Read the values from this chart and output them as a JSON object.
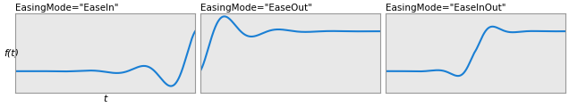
{
  "titles": [
    "EasingMode=\"EaseIn\"",
    "EasingMode=\"EaseOut\"",
    "EasingMode=\"EaseInOut\""
  ],
  "xlabel": "t",
  "ylabel": "f(t)",
  "bg_color": "#e8e8e8",
  "line_color": "#1a7fd4",
  "line_width": 1.5,
  "title_fontsize": 7.5,
  "axis_label_fontsize": 8,
  "n_points": 1000,
  "amplitude": 1.0,
  "period_in": 0.3,
  "period_inout": 0.45,
  "ylim": [
    -0.55,
    1.45
  ]
}
